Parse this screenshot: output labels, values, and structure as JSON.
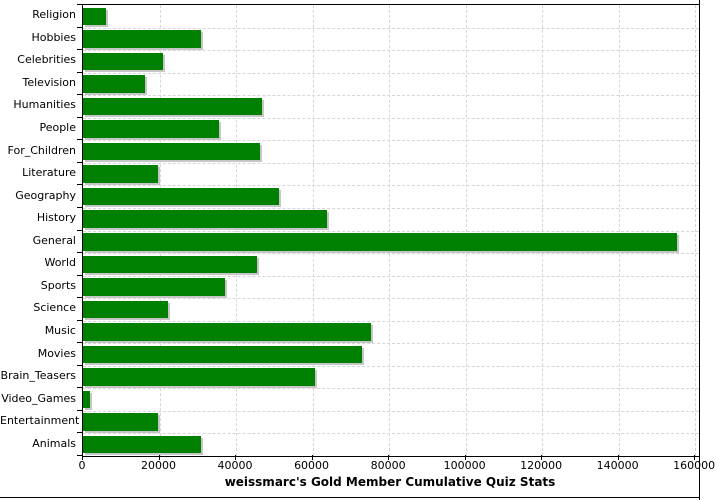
{
  "chart_data": {
    "type": "bar",
    "orientation": "horizontal",
    "title": "weissmarc's Gold Member Cumulative Quiz Stats",
    "categories": [
      "Religion",
      "Hobbies",
      "Celebrities",
      "Television",
      "Humanities",
      "People",
      "For_Children",
      "Literature",
      "Geography",
      "History",
      "General",
      "World",
      "Sports",
      "Science",
      "Music",
      "Movies",
      "Brain_Teasers",
      "Video_Games",
      "Entertainment",
      "Animals"
    ],
    "values": [
      6000,
      30900,
      21000,
      16200,
      46700,
      35600,
      46200,
      19700,
      51200,
      63800,
      155300,
      45600,
      37000,
      22300,
      75300,
      72900,
      60700,
      1900,
      19600,
      30900
    ],
    "xlabel": "",
    "ylabel": "",
    "xlim": [
      0,
      161000
    ],
    "x_ticks": [
      0,
      20000,
      40000,
      60000,
      80000,
      100000,
      120000,
      140000,
      160000
    ],
    "x_tick_labels": [
      "0",
      "20000",
      "40000",
      "60000",
      "80000",
      "100000",
      "120000",
      "140000",
      "160000"
    ],
    "grid": "dashed",
    "legend": "none",
    "colors": {
      "bar": "#008000",
      "bar_shadow": "#c6c6c6",
      "gridline": "#d6d6d6",
      "axis": "#000000",
      "text": "#000000",
      "background": "#ffffff"
    }
  }
}
